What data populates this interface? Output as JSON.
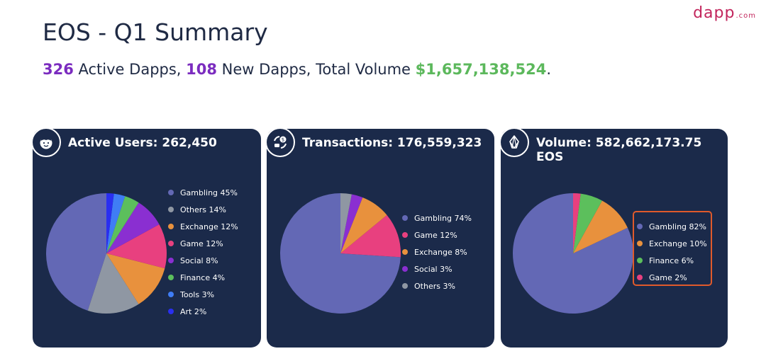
{
  "logo": {
    "main": "dapp",
    "suffix": ".com"
  },
  "header": {
    "title": "EOS - Q1 Summary",
    "active_dapps_value": "326",
    "active_dapps_label": " Active Dapps, ",
    "new_dapps_value": "108",
    "new_dapps_label": " New Dapps, Total Volume ",
    "total_volume_value": "$1,657,138,524",
    "period": "."
  },
  "colors": {
    "card_bg": "#1b2a4a",
    "Gambling": "#6368b5",
    "Others": "#8f97a3",
    "Exchange": "#e8913d",
    "Game": "#e8407f",
    "Social": "#8a2fd1",
    "Finance": "#5cbf5c",
    "Tools": "#3f7df5",
    "Art": "#2a2ff0",
    "highlight": "#e05a2b"
  },
  "chart_data": [
    {
      "type": "pie",
      "title": "Active Users: 262,450",
      "icon": "face-icon",
      "series": [
        {
          "name": "Gambling",
          "value": 45,
          "label": "Gambling 45%"
        },
        {
          "name": "Others",
          "value": 14,
          "label": "Others 14%"
        },
        {
          "name": "Exchange",
          "value": 12,
          "label": "Exchange 12%"
        },
        {
          "name": "Game",
          "value": 12,
          "label": "Game 12%"
        },
        {
          "name": "Social",
          "value": 8,
          "label": "Social 8%"
        },
        {
          "name": "Finance",
          "value": 4,
          "label": "Finance 4%"
        },
        {
          "name": "Tools",
          "value": 3,
          "label": "Tools 3%"
        },
        {
          "name": "Art",
          "value": 2,
          "label": "Art 2%"
        }
      ],
      "legend": "right"
    },
    {
      "type": "pie",
      "title": "Transactions: 176,559,323",
      "icon": "transaction-icon",
      "series": [
        {
          "name": "Gambling",
          "value": 74,
          "label": "Gambling 74%"
        },
        {
          "name": "Game",
          "value": 12,
          "label": "Game 12%"
        },
        {
          "name": "Exchange",
          "value": 8,
          "label": "Exchange 8%"
        },
        {
          "name": "Social",
          "value": 3,
          "label": "Social 3%"
        },
        {
          "name": "Others",
          "value": 3,
          "label": "Others 3%"
        }
      ],
      "legend": "right"
    },
    {
      "type": "pie",
      "title": "Volume: 582,662,173.75 EOS",
      "icon": "eos-icon",
      "series": [
        {
          "name": "Gambling",
          "value": 82,
          "label": "Gambling 82%"
        },
        {
          "name": "Exchange",
          "value": 10,
          "label": "Exchange 10%"
        },
        {
          "name": "Finance",
          "value": 6,
          "label": "Finance 6%"
        },
        {
          "name": "Game",
          "value": 2,
          "label": "Game 2%"
        }
      ],
      "legend": "right",
      "legend_highlighted": true
    }
  ]
}
